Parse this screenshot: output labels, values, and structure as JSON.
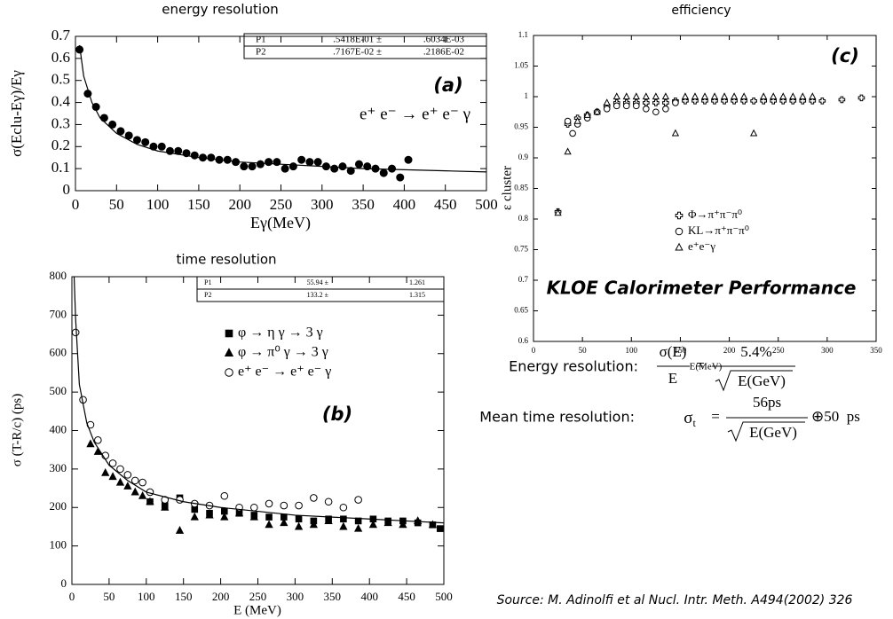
{
  "chart_data": [
    {
      "type": "scatter",
      "title": "energy resolution",
      "xlabel": "Eγ(MeV)",
      "ylabel": "σ(Eclu-Eγ)/Eγ",
      "xlim": [
        0,
        500
      ],
      "ylim": [
        0,
        0.7
      ],
      "xticks": [
        0,
        50,
        100,
        150,
        200,
        250,
        300,
        350,
        400,
        450,
        500
      ],
      "yticks": [
        0,
        0.1,
        0.2,
        0.3,
        0.4,
        0.5,
        0.6,
        0.7
      ],
      "grid": false,
      "fit_params": [
        [
          "P1",
          ".5418E-01 ±",
          ".6034E-03"
        ],
        [
          "P2",
          ".7167E-02 ±",
          ".2186E-02"
        ]
      ],
      "annotations": [
        "(a)",
        "e⁺ e⁻ → e⁺ e⁻ γ"
      ],
      "series": [
        {
          "marker": "dot",
          "color": "#000000",
          "x": [
            5,
            15,
            25,
            35,
            45,
            55,
            65,
            75,
            85,
            95,
            105,
            115,
            125,
            135,
            145,
            155,
            165,
            175,
            185,
            195,
            205,
            215,
            225,
            235,
            245,
            255,
            265,
            275,
            285,
            295,
            305,
            315,
            325,
            335,
            345,
            355,
            365,
            375,
            385,
            395,
            405
          ],
          "values": [
            0.64,
            0.44,
            0.38,
            0.33,
            0.3,
            0.27,
            0.25,
            0.23,
            0.22,
            0.2,
            0.2,
            0.18,
            0.18,
            0.17,
            0.16,
            0.15,
            0.15,
            0.14,
            0.14,
            0.13,
            0.11,
            0.11,
            0.12,
            0.13,
            0.13,
            0.1,
            0.11,
            0.14,
            0.13,
            0.13,
            0.11,
            0.1,
            0.11,
            0.09,
            0.12,
            0.11,
            0.1,
            0.08,
            0.1,
            0.06,
            0.14
          ]
        },
        {
          "marker": "line",
          "color": "#000000",
          "x": [
            5,
            10,
            20,
            30,
            50,
            75,
            100,
            150,
            200,
            250,
            300,
            350,
            400,
            450,
            500
          ],
          "values": [
            0.66,
            0.52,
            0.4,
            0.33,
            0.26,
            0.21,
            0.18,
            0.15,
            0.13,
            0.12,
            0.11,
            0.1,
            0.095,
            0.09,
            0.085
          ]
        }
      ]
    },
    {
      "type": "scatter",
      "title": "time resolution",
      "xlabel": "E (MeV)",
      "ylabel": "σ (T-R/c) (ps)",
      "xlim": [
        0,
        500
      ],
      "ylim": [
        0,
        800
      ],
      "xticks": [
        0,
        50,
        100,
        150,
        200,
        250,
        300,
        350,
        400,
        450,
        500
      ],
      "yticks": [
        0,
        100,
        200,
        300,
        400,
        500,
        600,
        700,
        800
      ],
      "grid": false,
      "fit_params": [
        [
          "P1",
          "55.94 ±",
          "1.261"
        ],
        [
          "P2",
          "133.2 ±",
          "1.315"
        ]
      ],
      "annotations": [
        "(b)"
      ],
      "series": [
        {
          "name": "φ → η γ → 3 γ",
          "marker": "square",
          "color": "#000000",
          "x": [
            105,
            125,
            145,
            165,
            185,
            205,
            225,
            245,
            265,
            285,
            305,
            325,
            345,
            365,
            385,
            405,
            425,
            445,
            465,
            485,
            495
          ],
          "values": [
            215,
            205,
            225,
            195,
            185,
            190,
            185,
            180,
            175,
            175,
            170,
            165,
            170,
            170,
            165,
            170,
            165,
            165,
            160,
            155,
            145
          ]
        },
        {
          "name": "φ → π⁰ γ → 3 γ",
          "marker": "triangle",
          "color": "#000000",
          "x": [
            25,
            35,
            45,
            55,
            65,
            75,
            85,
            95,
            105,
            125,
            145,
            165,
            185,
            205,
            225,
            245,
            265,
            285,
            305,
            325,
            345,
            365,
            385,
            405,
            425,
            445,
            465,
            485
          ],
          "values": [
            365,
            345,
            290,
            280,
            265,
            255,
            240,
            230,
            215,
            200,
            140,
            175,
            180,
            175,
            185,
            175,
            155,
            160,
            150,
            155,
            165,
            150,
            145,
            155,
            160,
            155,
            165,
            155
          ]
        },
        {
          "name": "e⁺ e⁻ → e⁺ e⁻ γ",
          "marker": "circle",
          "color": "#000000",
          "x": [
            5,
            15,
            25,
            35,
            45,
            55,
            65,
            75,
            85,
            95,
            105,
            125,
            145,
            165,
            185,
            205,
            225,
            245,
            265,
            285,
            305,
            325,
            345,
            365,
            385
          ],
          "values": [
            655,
            480,
            415,
            375,
            335,
            315,
            300,
            285,
            270,
            265,
            240,
            220,
            220,
            210,
            205,
            230,
            200,
            200,
            210,
            205,
            205,
            225,
            215,
            200,
            220
          ]
        },
        {
          "marker": "line",
          "color": "#000000",
          "x": [
            3,
            5,
            10,
            20,
            30,
            50,
            75,
            100,
            150,
            200,
            250,
            300,
            350,
            400,
            450,
            500
          ],
          "values": [
            800,
            690,
            520,
            420,
            370,
            310,
            270,
            240,
            215,
            200,
            190,
            180,
            175,
            170,
            165,
            160
          ]
        }
      ]
    },
    {
      "type": "scatter",
      "title": "efficiency",
      "xlabel": "E(MeV)",
      "ylabel": "ε cluster",
      "xlim": [
        0,
        350
      ],
      "ylim": [
        0.6,
        1.1
      ],
      "xticks": [
        0,
        50,
        100,
        150,
        200,
        250,
        300,
        350
      ],
      "yticks": [
        0.6,
        0.65,
        0.7,
        0.75,
        0.8,
        0.85,
        0.9,
        0.95,
        1,
        1.05,
        1.1
      ],
      "grid": false,
      "annotations": [
        "(c)"
      ],
      "series": [
        {
          "name": "Φ→π⁺π⁻π⁰",
          "marker": "cross",
          "color": "#000000",
          "x": [
            25,
            35,
            45,
            55,
            65,
            75,
            85,
            95,
            105,
            115,
            125,
            135,
            145,
            155,
            165,
            175,
            185,
            195,
            205,
            215,
            225,
            235,
            245,
            255,
            265,
            275,
            285,
            295,
            315,
            335
          ],
          "values": [
            0.812,
            0.955,
            0.965,
            0.97,
            0.975,
            0.985,
            0.99,
            0.99,
            0.99,
            0.99,
            0.99,
            0.99,
            0.993,
            0.993,
            0.993,
            0.993,
            0.993,
            0.993,
            0.993,
            0.993,
            0.993,
            0.993,
            0.993,
            0.993,
            0.993,
            0.993,
            0.993,
            0.993,
            0.995,
            0.998
          ]
        },
        {
          "name": "KL→π⁺π⁻π⁰",
          "marker": "circle",
          "color": "#000000",
          "x": [
            35,
            40,
            45,
            55,
            65,
            75,
            85,
            95,
            105,
            115,
            125,
            135,
            145
          ],
          "values": [
            0.96,
            0.94,
            0.955,
            0.965,
            0.975,
            0.98,
            0.985,
            0.985,
            0.985,
            0.98,
            0.975,
            0.98,
            0.99
          ]
        },
        {
          "name": "e⁺e⁻γ",
          "marker": "triangle-open",
          "color": "#000000",
          "x": [
            25,
            35,
            45,
            55,
            65,
            75,
            85,
            95,
            105,
            115,
            125,
            135,
            145,
            155,
            165,
            175,
            185,
            195,
            205,
            215,
            225,
            235,
            245,
            255,
            265,
            275,
            285
          ],
          "values": [
            0.81,
            0.91,
            0.96,
            0.97,
            0.975,
            0.99,
            1.0,
            1.0,
            1.0,
            1.0,
            1.0,
            1.0,
            0.94,
            1.0,
            1.0,
            1.0,
            1.0,
            1.0,
            1.0,
            1.0,
            0.94,
            1.0,
            1.0,
            1.0,
            1.0,
            1.0,
            1.0
          ]
        }
      ]
    }
  ],
  "summary": {
    "title": "KLOE Calorimeter Performance",
    "energy": {
      "label": "Energy resolution:",
      "lhs_num": "σ(E)",
      "lhs_den": "E",
      "eq": "=",
      "rhs_num": "5.4%",
      "rhs_den": "E(GeV)"
    },
    "time": {
      "label": "Mean time resolution:",
      "lhs": "σ",
      "lhs_sub": "t",
      "eq": "=",
      "rhs_num": "56ps",
      "rhs_den": "E(GeV)",
      "tail": "⊕50  ps"
    },
    "source": "Source:  M. Adinolfi et al Nucl. Intr. Meth. A494(2002) 326"
  }
}
